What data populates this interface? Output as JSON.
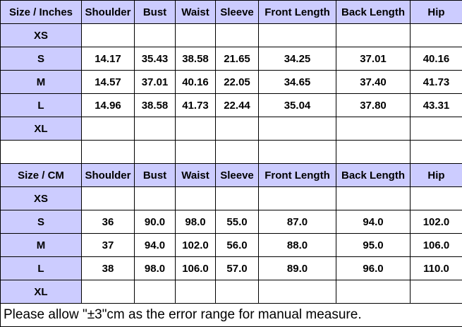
{
  "inches_table": {
    "header": [
      "Size / Inches",
      "Shoulder",
      "Bust",
      "Waist",
      "Sleeve",
      "Front Length",
      "Back Length",
      "Hip"
    ],
    "rows": [
      {
        "size": "XS"
      },
      {
        "size": "S",
        "values": [
          "14.17",
          "35.43",
          "38.58",
          "21.65",
          "34.25",
          "37.01",
          "40.16"
        ]
      },
      {
        "size": "M",
        "values": [
          "14.57",
          "37.01",
          "40.16",
          "22.05",
          "34.65",
          "37.40",
          "41.73"
        ]
      },
      {
        "size": "L",
        "values": [
          "14.96",
          "38.58",
          "41.73",
          "22.44",
          "35.04",
          "37.80",
          "43.31"
        ]
      },
      {
        "size": "XL"
      }
    ]
  },
  "cm_table": {
    "header": [
      "Size / CM",
      "Shoulder",
      "Bust",
      "Waist",
      "Sleeve",
      "Front Length",
      "Back Length",
      "Hip"
    ],
    "rows": [
      {
        "size": "XS"
      },
      {
        "size": "S",
        "values": [
          "36",
          "90.0",
          "98.0",
          "55.0",
          "87.0",
          "94.0",
          "102.0"
        ]
      },
      {
        "size": "M",
        "values": [
          "37",
          "94.0",
          "102.0",
          "56.0",
          "88.0",
          "95.0",
          "106.0"
        ]
      },
      {
        "size": "L",
        "values": [
          "38",
          "98.0",
          "106.0",
          "57.0",
          "89.0",
          "96.0",
          "110.0"
        ]
      },
      {
        "size": "XL"
      }
    ]
  },
  "note": "Please allow \"±3\"cm as the error range for manual measure."
}
